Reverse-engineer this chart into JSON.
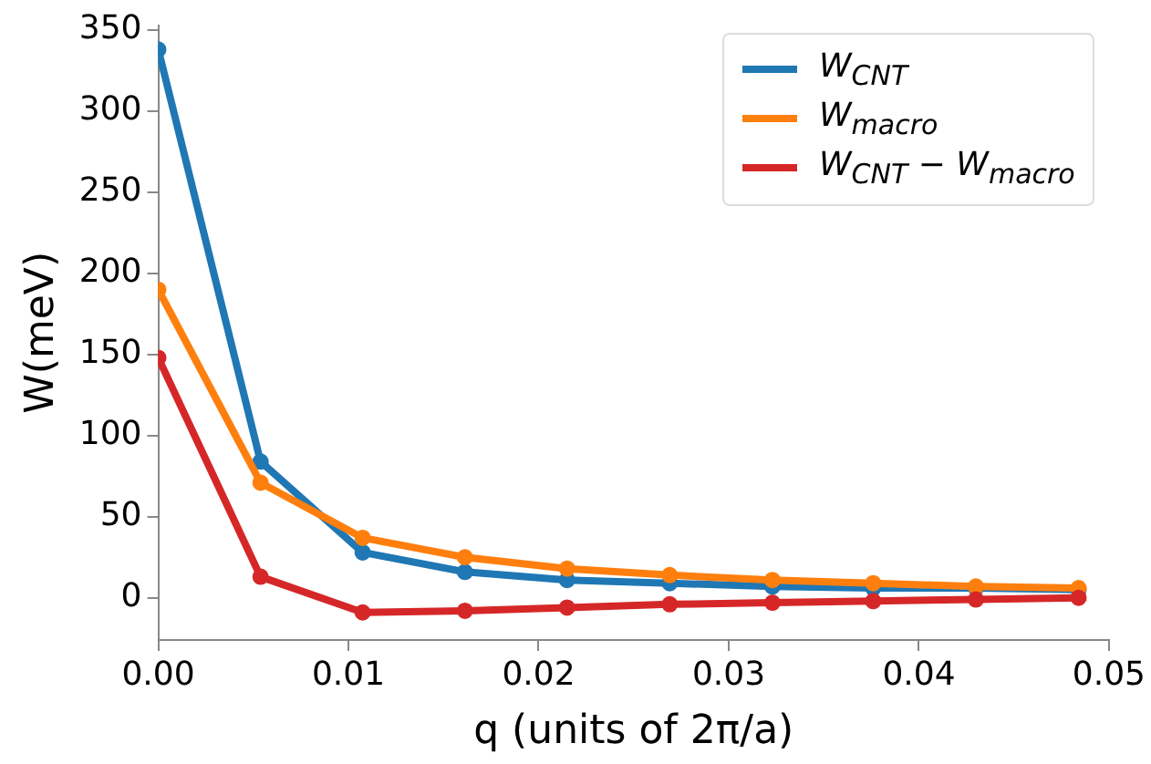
{
  "chart_data": {
    "type": "line",
    "xlabel": "q (units of 2π/a)",
    "ylabel": "W(meV)",
    "x": [
      0,
      0.00538,
      0.01075,
      0.01613,
      0.0215,
      0.0269,
      0.0323,
      0.0376,
      0.043,
      0.0484
    ],
    "series": [
      {
        "name": "W$_{CNT}$",
        "color": "#1f77b4",
        "values": [
          338,
          84,
          28,
          16,
          11,
          9,
          7,
          6,
          6,
          5
        ]
      },
      {
        "name": "W$_{macro}$",
        "color": "#ff7f0e",
        "values": [
          190,
          71,
          37,
          25,
          18,
          14,
          11,
          9,
          7,
          6
        ]
      },
      {
        "name": "W$_{CNT}$ − W$_{macro}$",
        "color": "#d62728",
        "values": [
          148,
          13,
          -9,
          -8,
          -6,
          -4,
          -3,
          -2,
          -1,
          0
        ]
      }
    ],
    "xlim": [
      0,
      0.05
    ],
    "xticks": [
      {
        "value": 0,
        "label": "0.00"
      },
      {
        "value": 0.01,
        "label": "0.01"
      },
      {
        "value": 0.02,
        "label": "0.02"
      },
      {
        "value": 0.03,
        "label": "0.03"
      },
      {
        "value": 0.04,
        "label": "0.04"
      },
      {
        "value": 0.05,
        "label": "0.05"
      }
    ],
    "ylim": [
      -26,
      353
    ],
    "yticks": [
      0,
      50,
      100,
      150,
      200,
      250,
      300,
      350
    ],
    "grid": false,
    "legend": "top right",
    "marker": "circle",
    "line_style": "solid"
  }
}
